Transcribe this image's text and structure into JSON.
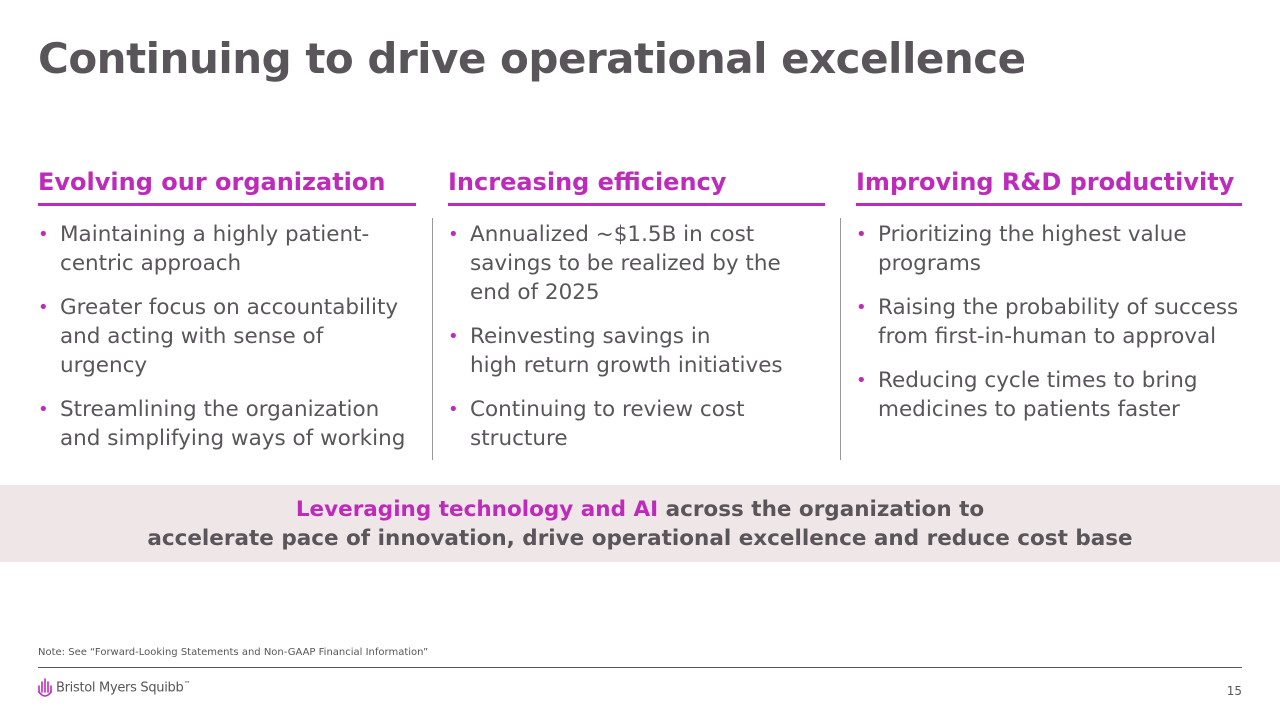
{
  "title": "Continuing to drive operational excellence",
  "columns": [
    {
      "heading": "Evolving our organization",
      "bullets": [
        "Maintaining a highly patient-\ncentric approach",
        "Greater focus on accountability\nand acting with sense of urgency",
        "Streamlining the organization\nand simplifying ways of working"
      ]
    },
    {
      "heading": "Increasing efficiency",
      "bullets": [
        "Annualized ~$1.5B in cost\nsavings to be realized by the\nend of 2025",
        "Reinvesting savings in\nhigh return growth initiatives",
        "Continuing to review cost\nstructure"
      ]
    },
    {
      "heading": "Improving R&D productivity",
      "bullets": [
        "Prioritizing the highest value\nprograms",
        "Raising the probability of success\nfrom first-in-human to approval",
        "Reducing cycle times to bring\nmedicines to patients faster"
      ]
    }
  ],
  "banner": {
    "accent": "Leveraging technology and AI",
    "line1_rest": " across the organization to",
    "line2": "accelerate pace of innovation, drive operational excellence and reduce cost base"
  },
  "footer": {
    "note": "Note: See “Forward-Looking Statements and Non-GAAP Financial Information”",
    "logo_text": "Bristol Myers Squibb",
    "logo_mark": "™",
    "page_number": "15"
  },
  "colors": {
    "accent": "#be2bbb",
    "text": "#59555a",
    "banner_bg": "#efe6e7"
  },
  "icons": {
    "bullet": "•",
    "logo": "bms-logo-icon"
  }
}
